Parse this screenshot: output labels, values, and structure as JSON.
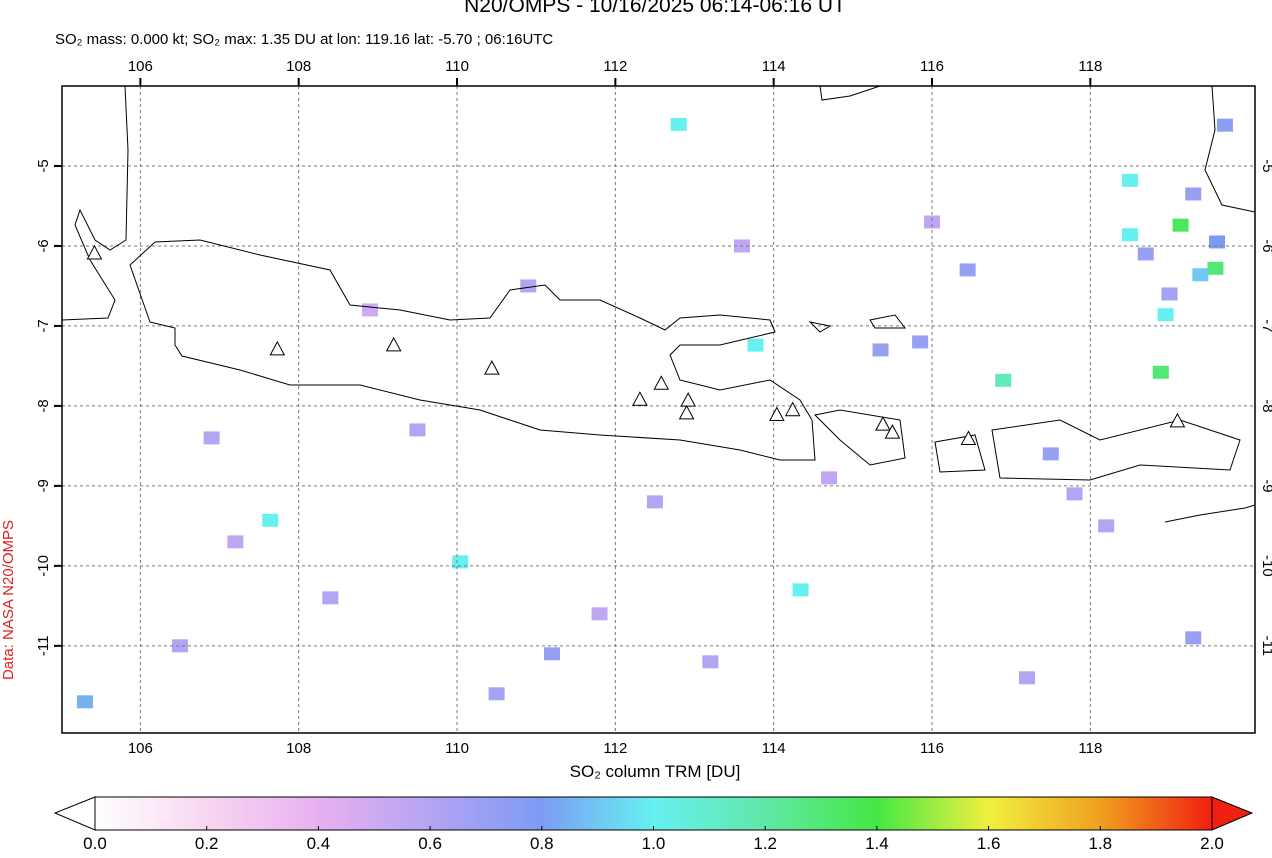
{
  "chart_data": {
    "type": "map",
    "title": "N20/OMPS - 10/16/2025 06:14-06:16 UT",
    "subtitle": "SO₂ mass: 0.000 kt; SO₂ max: 1.35 DU at lon: 119.16 lat: -5.70 ; 06:16UTC",
    "credit": "Data: NASA N20/OMPS",
    "xlim": [
      105.01,
      120.08
    ],
    "ylim": [
      -12.09,
      -4.0
    ],
    "xticks": [
      106,
      108,
      110,
      112,
      114,
      116,
      118
    ],
    "yticks": [
      -5,
      -6,
      -7,
      -8,
      -9,
      -10,
      -11
    ],
    "grid": true,
    "volcanoes": {
      "lon": [
        105.42,
        107.73,
        109.2,
        110.44,
        112.31,
        112.58,
        112.92,
        112.9,
        114.04,
        114.24,
        115.38,
        115.5,
        116.46,
        119.1
      ],
      "lat": [
        -6.1,
        -7.3,
        -7.25,
        -7.54,
        -7.93,
        -7.73,
        -7.94,
        -8.1,
        -8.12,
        -8.06,
        -8.24,
        -8.34,
        -8.42,
        -8.2
      ]
    },
    "pixels": {
      "lon": [
        118.5,
        119.14,
        119.58,
        118.95,
        118.89,
        118.5,
        119.39,
        116.9,
        113.77,
        114.34,
        110.04,
        107.64,
        112.8,
        119.7,
        119.3,
        118.7,
        119.0,
        119.6,
        116.45,
        115.35,
        115.85,
        111.2,
        110.5,
        108.4,
        106.5,
        107.2,
        109.5,
        113.2,
        114.7,
        117.5,
        117.8,
        118.2,
        119.3,
        112.5,
        111.8,
        106.9,
        110.9,
        113.6,
        116.0,
        117.2,
        108.9,
        105.3
      ],
      "lat": [
        -5.18,
        -5.74,
        -6.28,
        -6.86,
        -7.58,
        -5.86,
        -6.36,
        -7.68,
        -7.24,
        -10.3,
        -9.95,
        -9.43,
        -4.48,
        -4.49,
        -5.35,
        -6.1,
        -6.6,
        -5.95,
        -6.3,
        -7.3,
        -7.2,
        -11.1,
        -11.6,
        -10.4,
        -11.0,
        -9.7,
        -8.3,
        -11.2,
        -8.9,
        -8.6,
        -9.1,
        -9.5,
        -10.9,
        -9.2,
        -10.6,
        -8.4,
        -6.5,
        -6.0,
        -5.7,
        -11.4,
        -6.8,
        -11.7
      ],
      "values": [
        1.0,
        1.35,
        1.3,
        1.0,
        1.3,
        1.0,
        0.9,
        1.15,
        1.0,
        1.0,
        1.0,
        1.0,
        1.0,
        0.75,
        0.7,
        0.7,
        0.65,
        0.8,
        0.7,
        0.7,
        0.7,
        0.7,
        0.65,
        0.6,
        0.6,
        0.55,
        0.6,
        0.6,
        0.55,
        0.7,
        0.6,
        0.6,
        0.7,
        0.6,
        0.55,
        0.6,
        0.6,
        0.55,
        0.55,
        0.6,
        0.5,
        0.85
      ]
    },
    "colorbar": {
      "label": "SO₂ column TRM [DU]",
      "lim": [
        0,
        2
      ],
      "ticks": [
        {
          "value": 0,
          "label": "0.0"
        },
        {
          "value": 0.2,
          "label": "0.2"
        },
        {
          "value": 0.4,
          "label": "0.4"
        },
        {
          "value": 0.6,
          "label": "0.6"
        },
        {
          "value": 0.8,
          "label": "0.8"
        },
        {
          "value": 1,
          "label": "1.0"
        },
        {
          "value": 1.2,
          "label": "1.2"
        },
        {
          "value": 1.4,
          "label": "1.4"
        },
        {
          "value": 1.6,
          "label": "1.6"
        },
        {
          "value": 1.8,
          "label": "1.8"
        },
        {
          "value": 2,
          "label": "2.0"
        }
      ]
    }
  }
}
